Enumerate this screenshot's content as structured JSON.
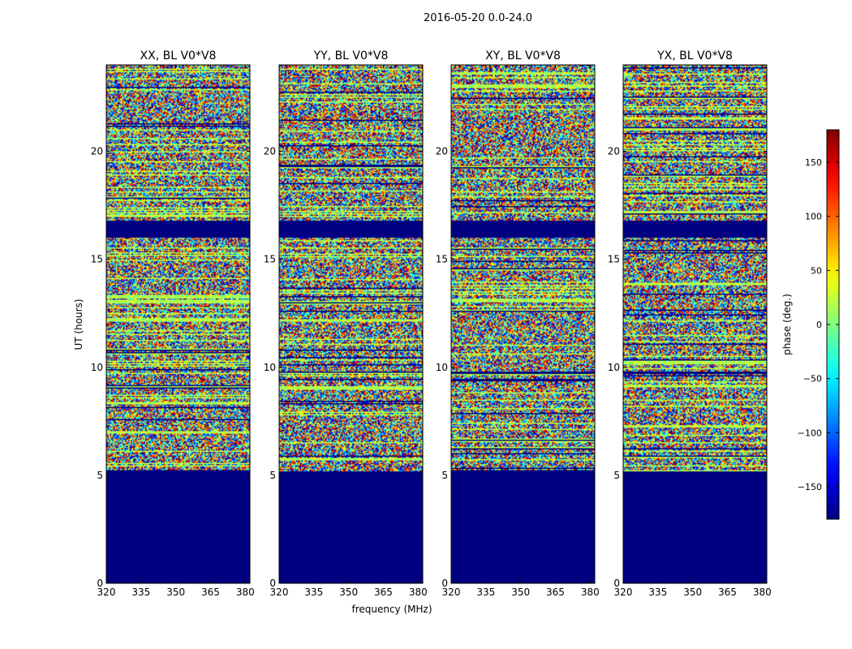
{
  "figure_title": "2016-05-20 0.0-24.0",
  "chart_data": {
    "type": "heatmap",
    "xlabel": "frequency (MHz)",
    "ylabel": "UT (hours)",
    "xlim": [
      320,
      382
    ],
    "ylim": [
      0,
      24
    ],
    "x_ticks": [
      320,
      335,
      350,
      365,
      380
    ],
    "y_ticks": [
      0,
      5,
      10,
      15,
      20
    ],
    "panels": [
      {
        "title": "XX, BL V0*V8"
      },
      {
        "title": "YY, BL V0*V8"
      },
      {
        "title": "XY, BL V0*V8"
      },
      {
        "title": "YX, BL V0*V8"
      }
    ],
    "blank_ut_ranges": [
      [
        0,
        5.2
      ],
      [
        16.0,
        16.8
      ]
    ],
    "colorbar": {
      "label": "phase (deg.)",
      "range": [
        -180,
        180
      ],
      "ticks": [
        -150,
        -100,
        -50,
        0,
        50,
        100,
        150
      ],
      "tick_labels": [
        "−150",
        "−100",
        "−50",
        "0",
        "50",
        "100",
        "150"
      ],
      "colormap": "jet"
    }
  }
}
